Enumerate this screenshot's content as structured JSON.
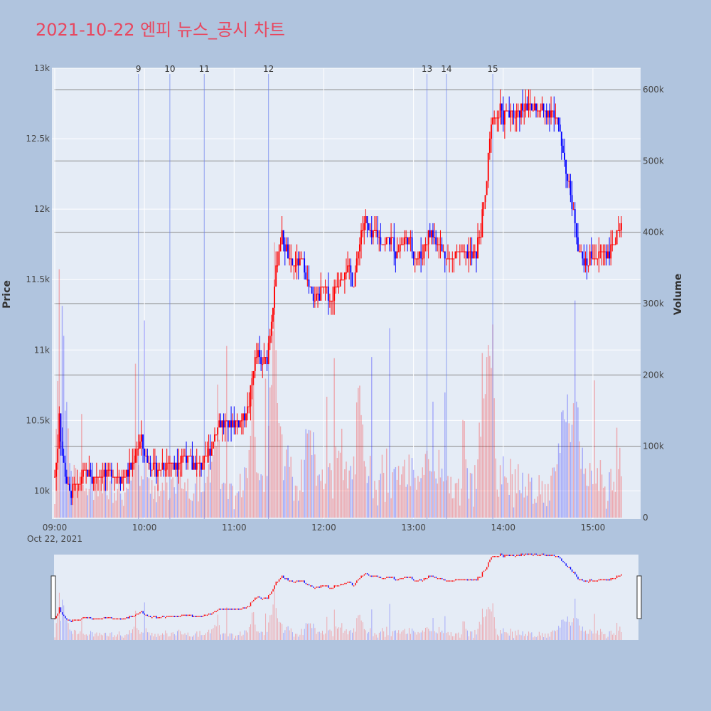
{
  "title": "2021-10-22 엔피 뉴스_공시 차트",
  "colors": {
    "page_bg": "#b0c4de",
    "plot_bg": "#e5ecf6",
    "up": "#ff0000",
    "down": "#0000ff",
    "title": "#e8475f",
    "news_line": "#6a7ff0"
  },
  "chart_data": {
    "type": "candlestick",
    "xlabel": "",
    "ylabel": "Price",
    "y2label": "Volume",
    "x_range": [
      "09:00",
      "15:30"
    ],
    "y_range": [
      9800,
      13000
    ],
    "y2_range": [
      0,
      630000
    ],
    "x_ticks": [
      {
        "time": "09:00",
        "label": "09:00"
      },
      {
        "time": "10:00",
        "label": "10:00"
      },
      {
        "time": "11:00",
        "label": "11:00"
      },
      {
        "time": "12:00",
        "label": "12:00"
      },
      {
        "time": "13:00",
        "label": "13:00"
      },
      {
        "time": "14:00",
        "label": "14:00"
      },
      {
        "time": "15:00",
        "label": "15:00"
      }
    ],
    "date_label": "Oct 22, 2021",
    "y_ticks": [
      {
        "value": 10000,
        "label": "10k"
      },
      {
        "value": 10500,
        "label": "10.5k"
      },
      {
        "value": 11000,
        "label": "11k"
      },
      {
        "value": 11500,
        "label": "11.5k"
      },
      {
        "value": 12000,
        "label": "12k"
      },
      {
        "value": 12500,
        "label": "12.5k"
      },
      {
        "value": 13000,
        "label": "13k"
      }
    ],
    "y2_ticks": [
      {
        "value": 0,
        "label": "0"
      },
      {
        "value": 100000,
        "label": "100k"
      },
      {
        "value": 200000,
        "label": "200k"
      },
      {
        "value": 300000,
        "label": "300k"
      },
      {
        "value": 400000,
        "label": "400k"
      },
      {
        "value": 500000,
        "label": "500k"
      },
      {
        "value": 600000,
        "label": "600k"
      }
    ],
    "news_markers": [
      {
        "label": "9",
        "time": "09:56"
      },
      {
        "label": "10",
        "time": "10:17"
      },
      {
        "label": "11",
        "time": "10:40"
      },
      {
        "label": "12",
        "time": "11:23"
      },
      {
        "label": "13",
        "time": "13:09"
      },
      {
        "label": "14",
        "time": "13:22"
      },
      {
        "label": "15",
        "time": "13:53"
      }
    ],
    "price_path": [
      [
        "09:00",
        10100
      ],
      [
        "09:02",
        10300
      ],
      [
        "09:03",
        10550
      ],
      [
        "09:05",
        10250
      ],
      [
        "09:07",
        10100
      ],
      [
        "09:09",
        10000
      ],
      [
        "09:11",
        9970
      ],
      [
        "09:13",
        10030
      ],
      [
        "09:15",
        10030
      ],
      [
        "09:18",
        10100
      ],
      [
        "09:22",
        10150
      ],
      [
        "09:25",
        10080
      ],
      [
        "09:30",
        10130
      ],
      [
        "09:35",
        10120
      ],
      [
        "09:40",
        10130
      ],
      [
        "09:45",
        10090
      ],
      [
        "09:50",
        10150
      ],
      [
        "09:55",
        10300
      ],
      [
        "09:58",
        10350
      ],
      [
        "10:00",
        10250
      ],
      [
        "10:05",
        10180
      ],
      [
        "10:10",
        10150
      ],
      [
        "10:15",
        10220
      ],
      [
        "10:20",
        10180
      ],
      [
        "10:25",
        10250
      ],
      [
        "10:30",
        10200
      ],
      [
        "10:35",
        10160
      ],
      [
        "10:40",
        10200
      ],
      [
        "10:44",
        10280
      ],
      [
        "10:47",
        10400
      ],
      [
        "10:50",
        10500
      ],
      [
        "10:55",
        10480
      ],
      [
        "11:00",
        10470
      ],
      [
        "11:05",
        10500
      ],
      [
        "11:10",
        10620
      ],
      [
        "11:13",
        10900
      ],
      [
        "11:16",
        10950
      ],
      [
        "11:18",
        10900
      ],
      [
        "11:22",
        10950
      ],
      [
        "11:25",
        11200
      ],
      [
        "11:27",
        11500
      ],
      [
        "11:30",
        11700
      ],
      [
        "11:32",
        11800
      ],
      [
        "11:35",
        11700
      ],
      [
        "11:38",
        11600
      ],
      [
        "11:42",
        11600
      ],
      [
        "11:45",
        11650
      ],
      [
        "11:50",
        11450
      ],
      [
        "11:53",
        11330
      ],
      [
        "11:56",
        11380
      ],
      [
        "12:00",
        11430
      ],
      [
        "12:05",
        11350
      ],
      [
        "12:10",
        11500
      ],
      [
        "12:15",
        11600
      ],
      [
        "12:20",
        11480
      ],
      [
        "12:23",
        11700
      ],
      [
        "12:25",
        11850
      ],
      [
        "12:28",
        11900
      ],
      [
        "12:32",
        11800
      ],
      [
        "12:35",
        11850
      ],
      [
        "12:40",
        11750
      ],
      [
        "12:45",
        11800
      ],
      [
        "12:48",
        11700
      ],
      [
        "12:52",
        11750
      ],
      [
        "12:55",
        11800
      ],
      [
        "13:00",
        11700
      ],
      [
        "13:04",
        11650
      ],
      [
        "13:08",
        11750
      ],
      [
        "13:12",
        11850
      ],
      [
        "13:15",
        11800
      ],
      [
        "13:20",
        11700
      ],
      [
        "13:25",
        11650
      ],
      [
        "13:30",
        11700
      ],
      [
        "13:33",
        11650
      ],
      [
        "13:36",
        11700
      ],
      [
        "13:39",
        11650
      ],
      [
        "13:42",
        11700
      ],
      [
        "13:45",
        11850
      ],
      [
        "13:46",
        11950
      ],
      [
        "13:48",
        12100
      ],
      [
        "13:50",
        12350
      ],
      [
        "13:52",
        12550
      ],
      [
        "13:53",
        12700
      ],
      [
        "13:56",
        12650
      ],
      [
        "13:58",
        12700
      ],
      [
        "14:00",
        12650
      ],
      [
        "14:03",
        12700
      ],
      [
        "14:06",
        12650
      ],
      [
        "14:10",
        12700
      ],
      [
        "14:15",
        12750
      ],
      [
        "14:20",
        12720
      ],
      [
        "14:25",
        12700
      ],
      [
        "14:30",
        12720
      ],
      [
        "14:35",
        12650
      ],
      [
        "14:38",
        12550
      ],
      [
        "14:40",
        12400
      ],
      [
        "14:43",
        12200
      ],
      [
        "14:45",
        12100
      ],
      [
        "14:48",
        11900
      ],
      [
        "14:50",
        11750
      ],
      [
        "14:53",
        11650
      ],
      [
        "14:55",
        11600
      ],
      [
        "15:00",
        11700
      ],
      [
        "15:03",
        11650
      ],
      [
        "15:06",
        11700
      ],
      [
        "15:10",
        11700
      ],
      [
        "15:14",
        11750
      ],
      [
        "15:17",
        11800
      ],
      [
        "15:19",
        11850
      ]
    ]
  }
}
